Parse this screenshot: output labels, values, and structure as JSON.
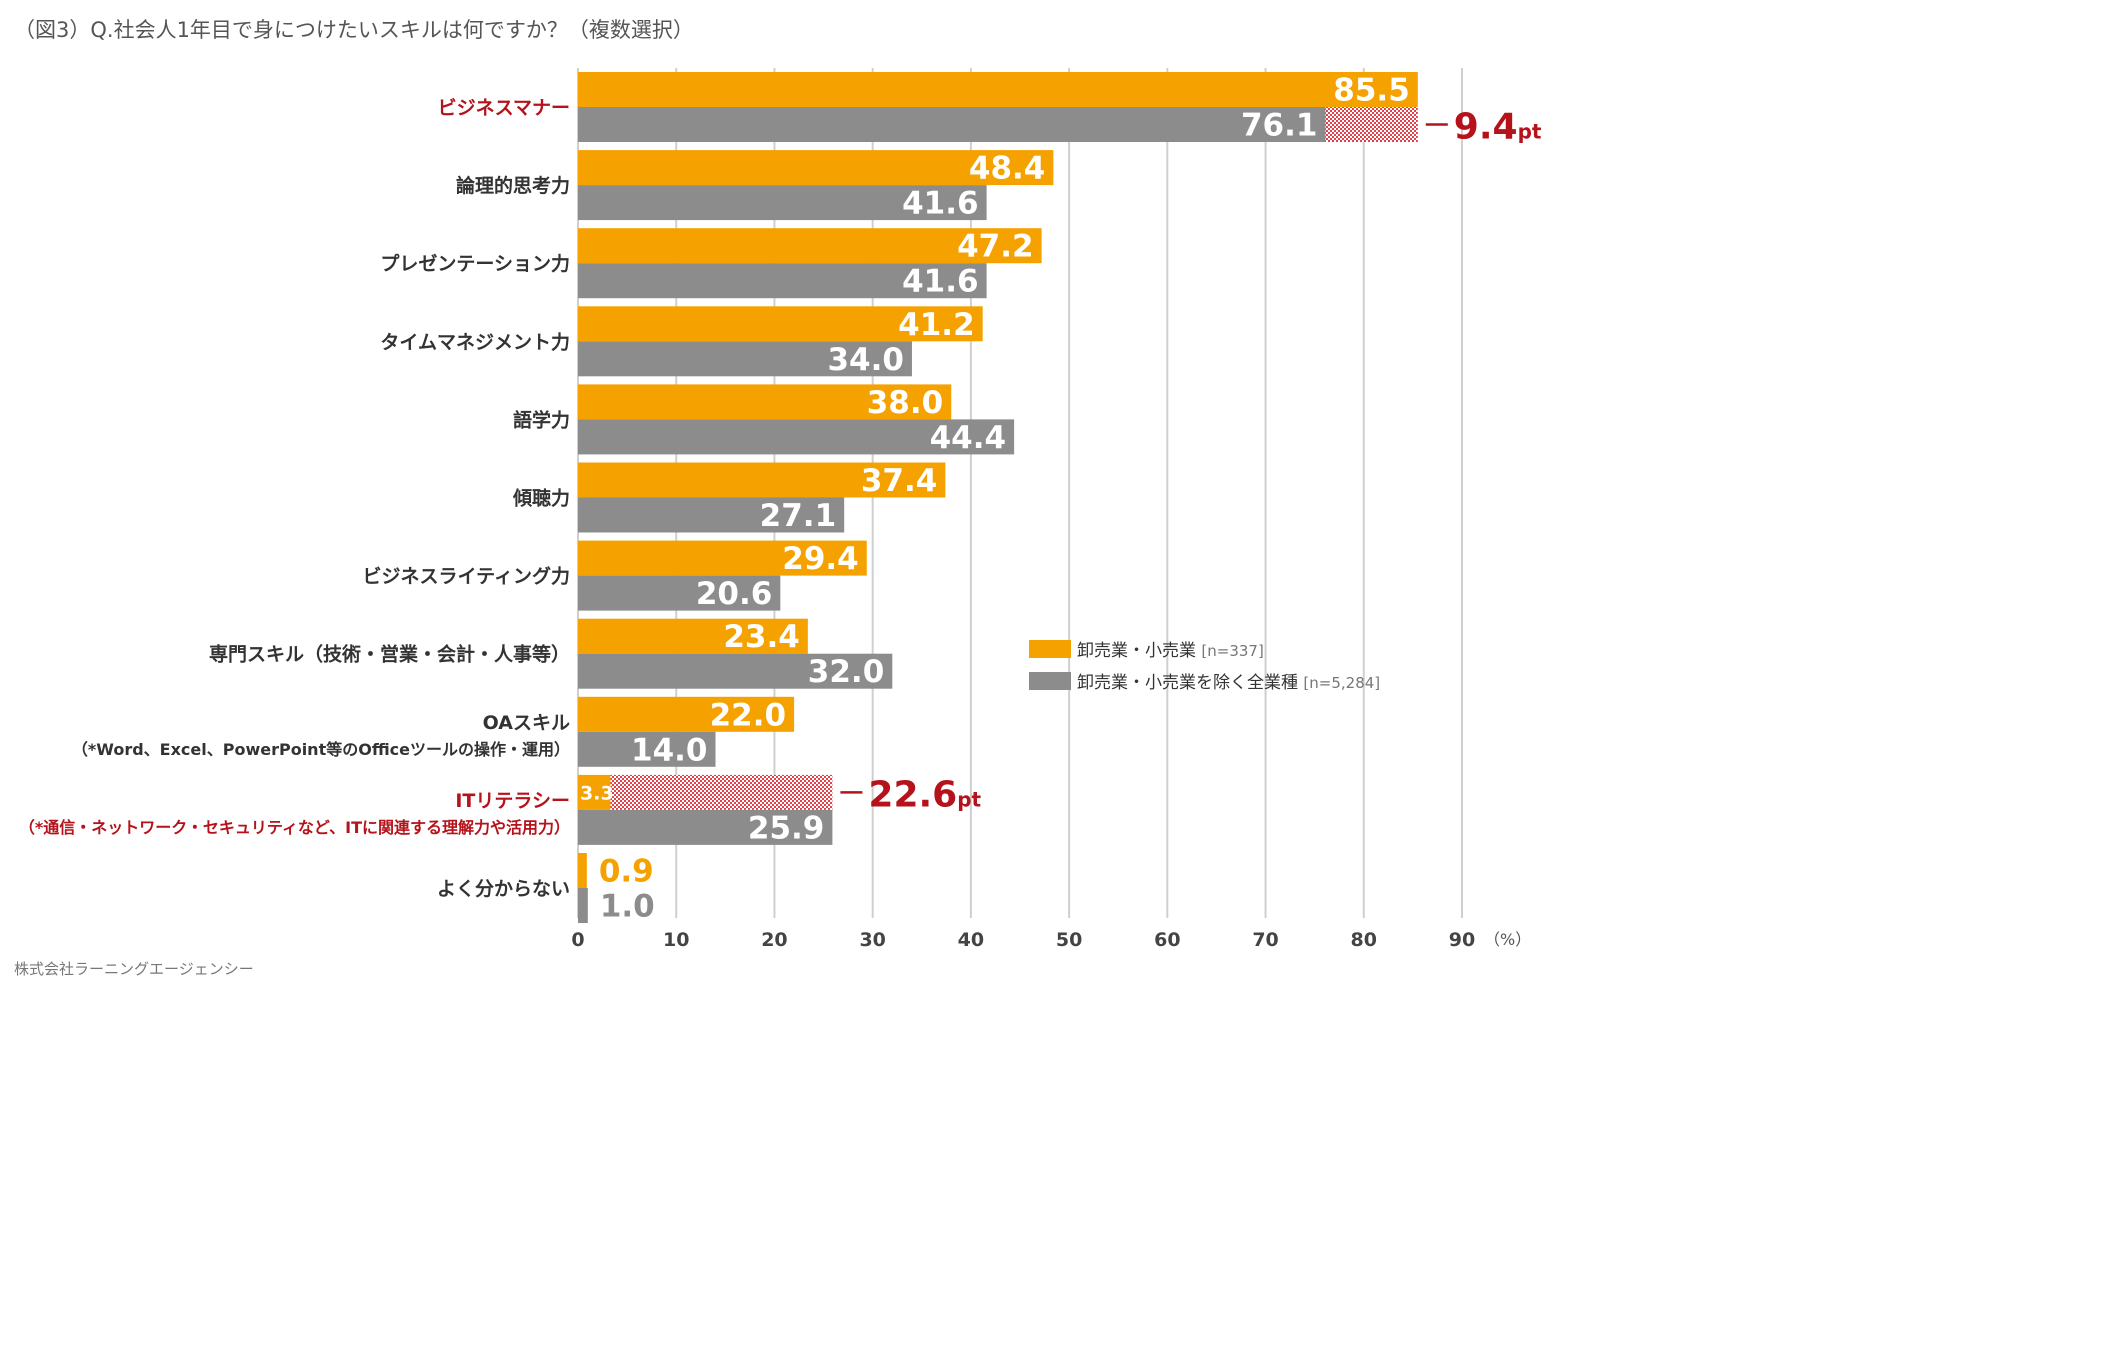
{
  "title": "（図3）Q.社会人1年目で身につけたいスキルは何ですか？（複数選択）",
  "source": "株式会社ラーニングエージェンシー",
  "chart_data": {
    "type": "bar",
    "orientation": "horizontal",
    "categories": [
      {
        "lines": [
          "ビジネスマナー"
        ],
        "highlight": true
      },
      {
        "lines": [
          "論理的思考力"
        ],
        "highlight": false
      },
      {
        "lines": [
          "プレゼンテーション力"
        ],
        "highlight": false
      },
      {
        "lines": [
          "タイムマネジメント力"
        ],
        "highlight": false
      },
      {
        "lines": [
          "語学力"
        ],
        "highlight": false
      },
      {
        "lines": [
          "傾聴力"
        ],
        "highlight": false
      },
      {
        "lines": [
          "ビジネスライティング力"
        ],
        "highlight": false
      },
      {
        "lines": [
          "専門スキル（技術・営業・会計・人事等）"
        ],
        "highlight": false
      },
      {
        "lines": [
          "OAスキル",
          "（*Word、Excel、PowerPoint等のOfficeツールの操作・運用）"
        ],
        "highlight": false
      },
      {
        "lines": [
          "ITリテラシー",
          "（*通信・ネットワーク・セキュリティなど、ITに関連する理解力や活用力）"
        ],
        "highlight": true
      },
      {
        "lines": [
          "よく分からない"
        ],
        "highlight": false
      }
    ],
    "series": [
      {
        "name": "卸売業・小売業",
        "n_label": "[n=337]",
        "color": "#f5a100",
        "values": [
          85.5,
          48.4,
          47.2,
          41.2,
          38.0,
          37.4,
          29.4,
          23.4,
          22.0,
          3.3,
          0.9
        ],
        "labels": [
          "85.5",
          "48.4",
          "47.2",
          "41.2",
          "38.0",
          "37.4",
          "29.4",
          "23.4",
          "22.0",
          "3.3",
          "0.9"
        ]
      },
      {
        "name": "卸売業・小売業を除く全業種",
        "n_label": "[n=5,284]",
        "color": "#8c8c8c",
        "values": [
          76.1,
          41.6,
          41.6,
          34.0,
          44.4,
          27.1,
          20.6,
          32.0,
          14.0,
          25.9,
          1.0
        ],
        "labels": [
          "76.1",
          "41.6",
          "41.6",
          "34.0",
          "44.4",
          "27.1",
          "20.6",
          "32.0",
          "14.0",
          "25.9",
          "1.0"
        ]
      }
    ],
    "differences": [
      {
        "category_index": 0,
        "label": "9.4",
        "unit": "pt"
      },
      {
        "category_index": 9,
        "label": "22.6",
        "unit": "pt"
      }
    ],
    "x_ticks": [
      "0",
      "10",
      "20",
      "30",
      "40",
      "50",
      "60",
      "70",
      "80",
      "90"
    ],
    "x_unit": "（%）",
    "xlim": [
      0,
      90
    ],
    "grid": true,
    "legend_position": "right-middle",
    "highlight_color": "#b5121b",
    "gridline_color": "#cfcfcf"
  }
}
